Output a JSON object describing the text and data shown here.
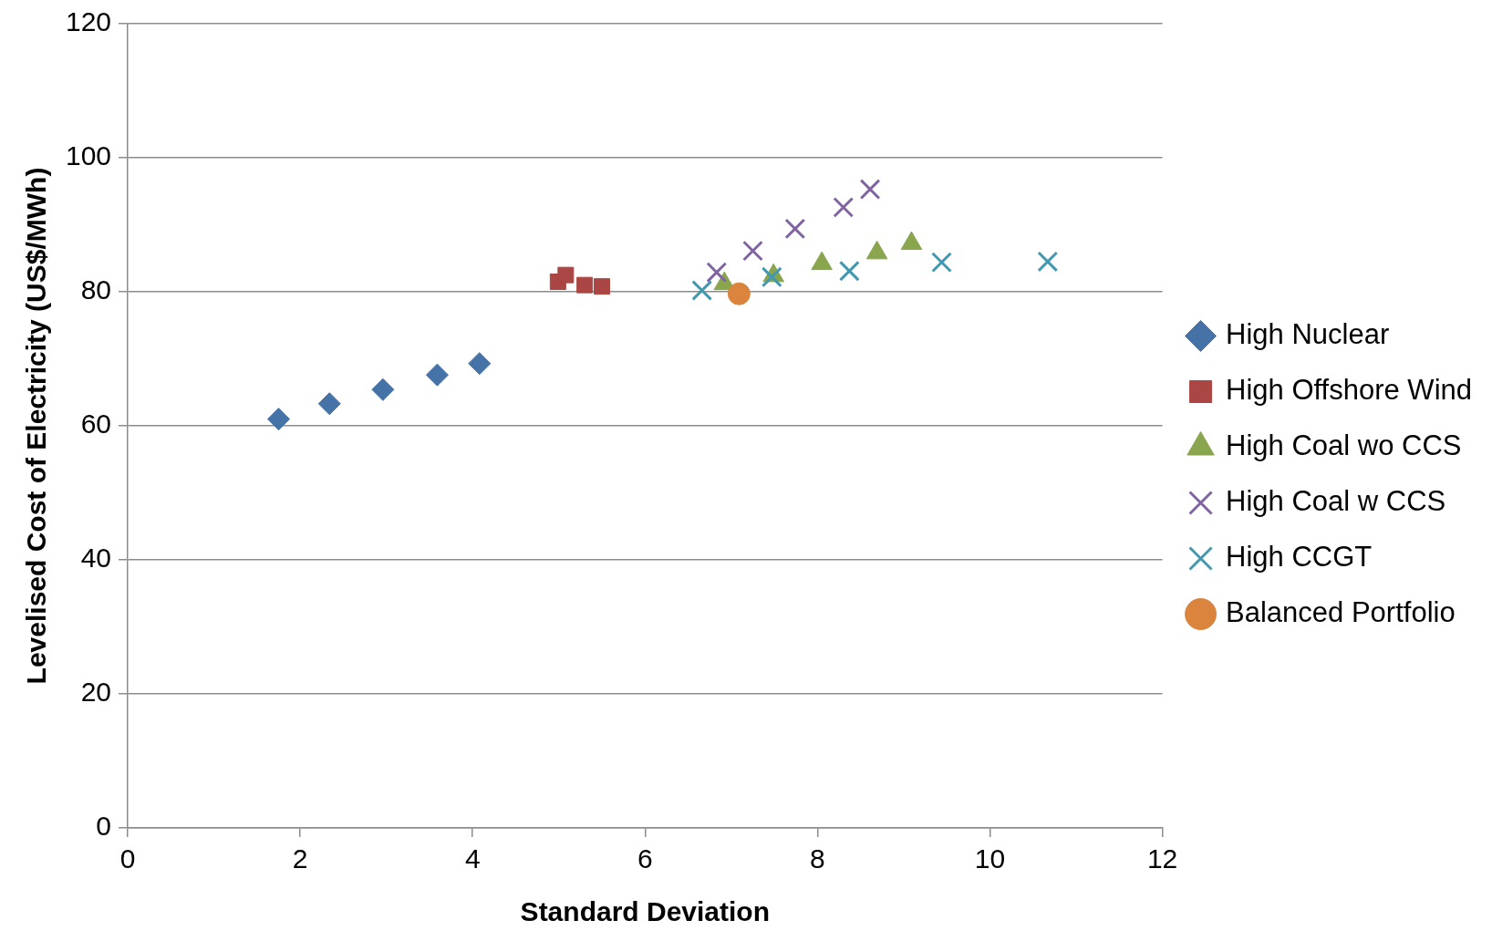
{
  "chart_data": {
    "type": "scatter",
    "xlabel": "Standard Deviation",
    "ylabel": "Levelised Cost of Electricity (US$/MWh)",
    "xlim": [
      0,
      12
    ],
    "xticks": [
      0,
      2,
      4,
      6,
      8,
      10,
      12
    ],
    "ylim": [
      0,
      120
    ],
    "yticks": [
      0,
      20,
      40,
      60,
      80,
      100,
      120
    ],
    "grid": "y",
    "legend": "right",
    "series": [
      {
        "name": "High Nuclear",
        "color": "#4572a7",
        "marker": "diamond",
        "x": [
          1.75,
          2.34,
          2.96,
          3.59,
          4.08
        ],
        "values": [
          61.0,
          63.3,
          65.4,
          67.6,
          69.3
        ]
      },
      {
        "name": "High Offshore Wind",
        "color": "#aa4643",
        "marker": "square",
        "x": [
          4.99,
          5.08,
          5.3,
          5.5
        ],
        "values": [
          81.5,
          82.5,
          81.0,
          80.8
        ]
      },
      {
        "name": "High Coal wo CCS",
        "color": "#89a54e",
        "marker": "triangle",
        "x": [
          6.92,
          7.49,
          8.05,
          8.69,
          9.09
        ],
        "values": [
          81.2,
          82.4,
          84.2,
          85.8,
          87.2
        ]
      },
      {
        "name": "High Coal w CCS",
        "color": "#8064a2",
        "marker": "cross",
        "x": [
          6.83,
          7.25,
          7.74,
          8.3,
          8.61
        ],
        "values": [
          82.9,
          86.1,
          89.4,
          92.6,
          95.3
        ]
      },
      {
        "name": "High CCGT",
        "color": "#4198af",
        "marker": "cross",
        "x": [
          6.66,
          7.47,
          8.37,
          9.44,
          10.67
        ],
        "values": [
          80.2,
          82.2,
          83.1,
          84.4,
          84.5
        ]
      },
      {
        "name": "Balanced Portfolio",
        "color": "#db843d",
        "marker": "circle",
        "x": [
          7.09
        ],
        "values": [
          79.7
        ]
      }
    ]
  }
}
